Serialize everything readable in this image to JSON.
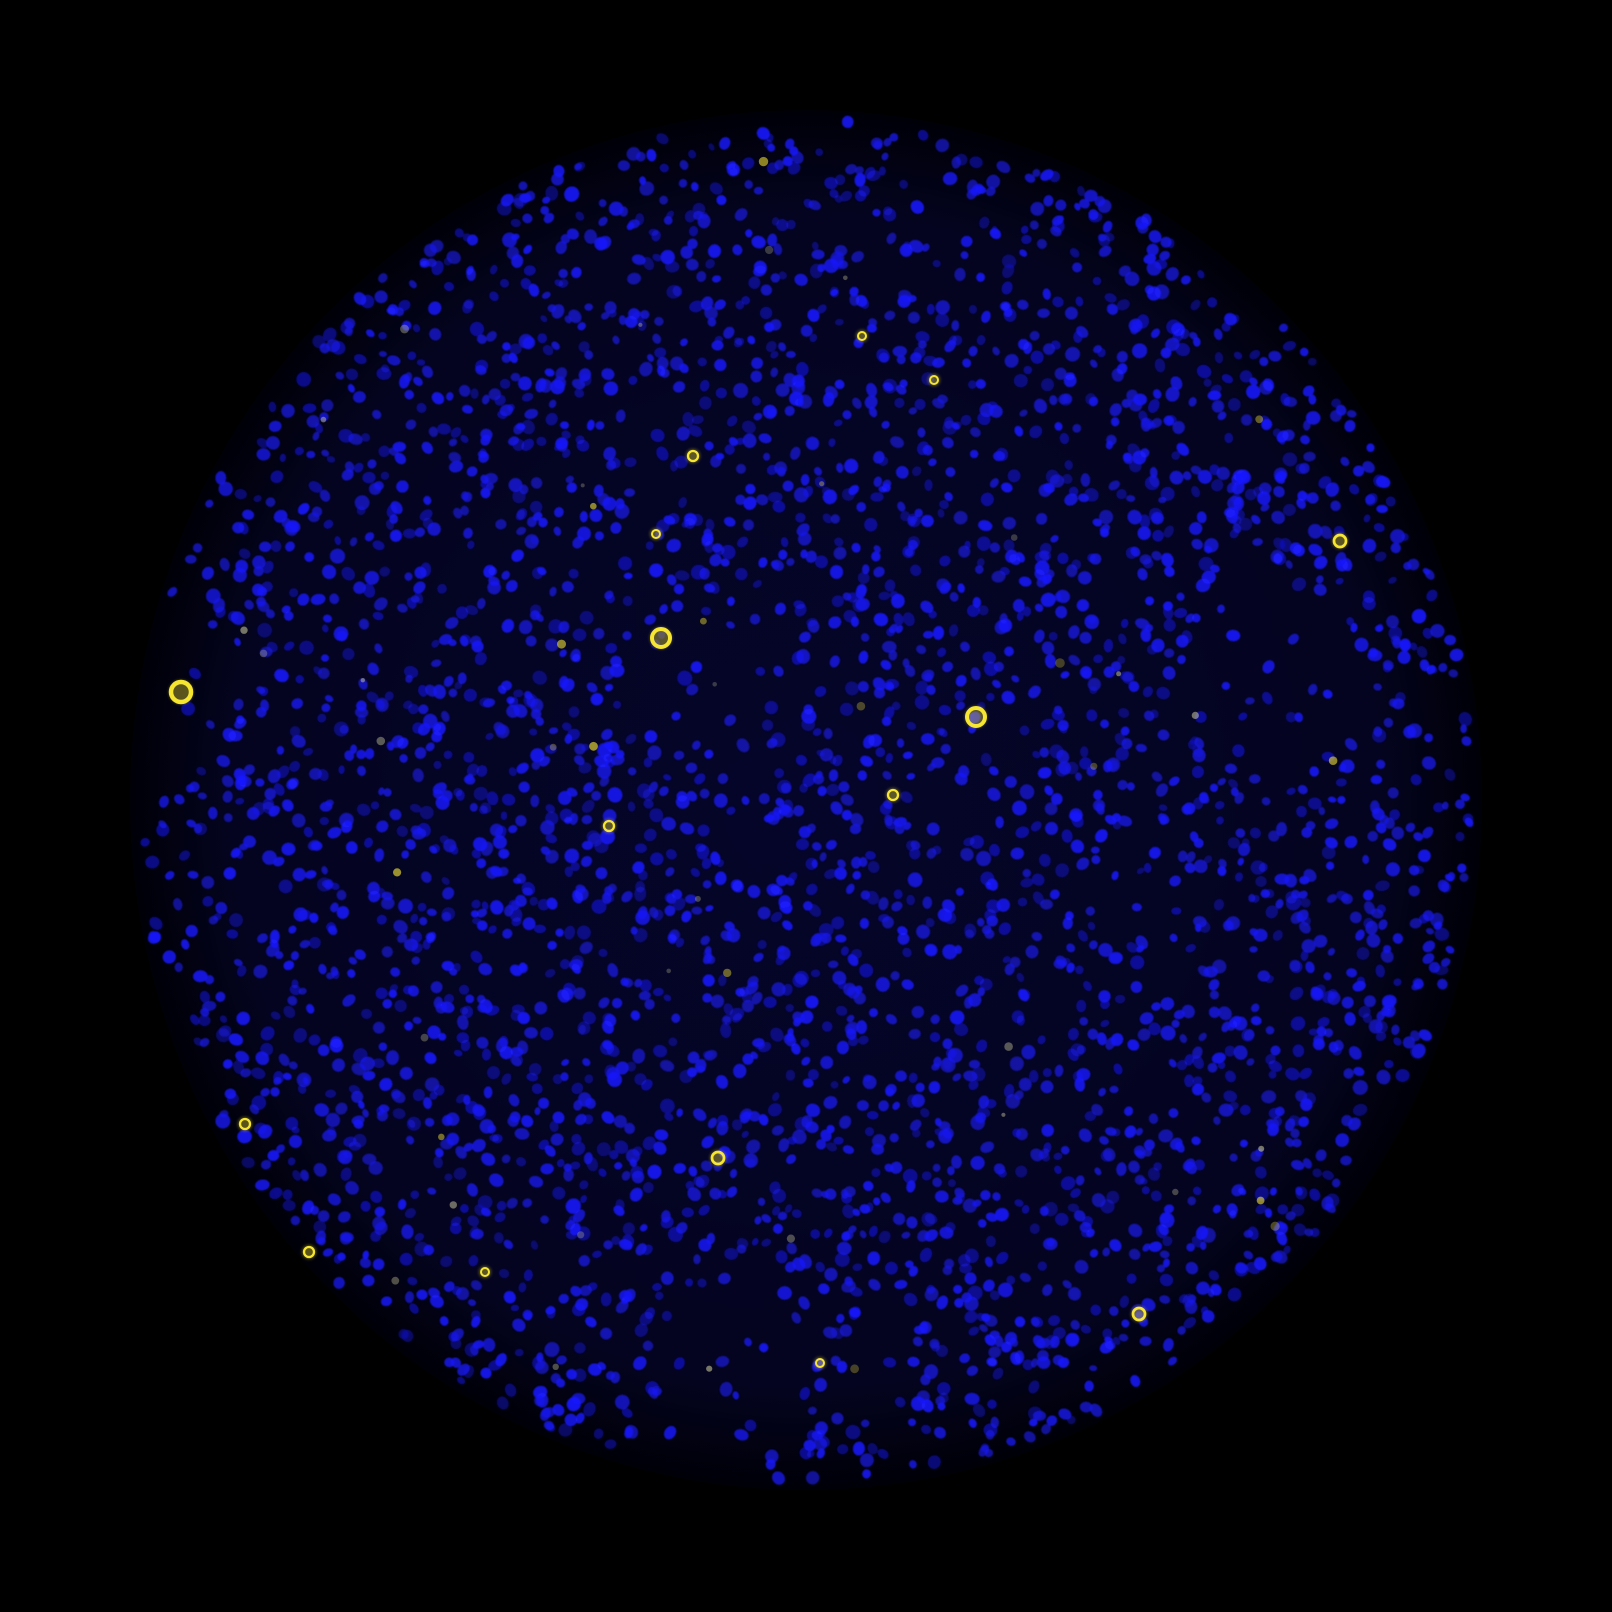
{
  "image": {
    "kind": "fluorescence-micrograph",
    "subject": "tissue-core",
    "background_color": "#000000",
    "channels": [
      {
        "marker": "nuclear-stain",
        "color": "#1a1aff"
      },
      {
        "marker": "positive-cells",
        "color": "#ffee33"
      }
    ]
  }
}
